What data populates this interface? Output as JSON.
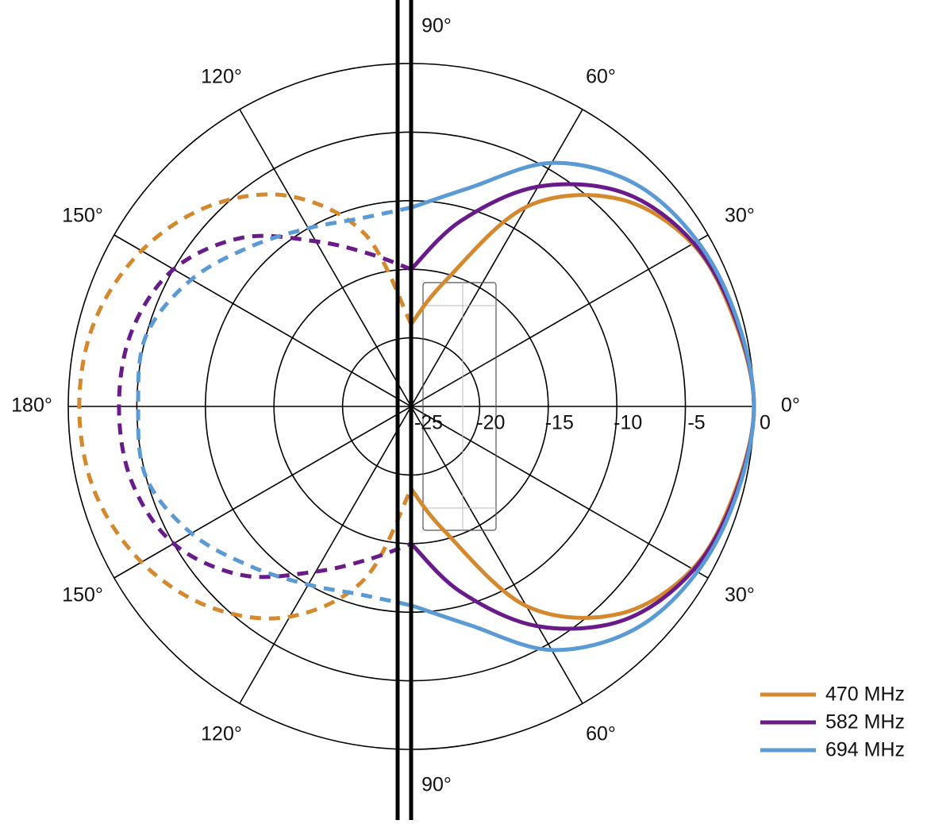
{
  "chart_data": {
    "type": "polar",
    "rlim": [
      -25,
      0
    ],
    "rticks": [
      -25,
      -20,
      -15,
      -10,
      -5,
      0
    ],
    "thetaticks": [
      {
        "value": 0,
        "label": "0°"
      },
      {
        "value": 30,
        "label": "30°"
      },
      {
        "value": 60,
        "label": "60°"
      },
      {
        "value": 90,
        "label": "90°"
      },
      {
        "value": 120,
        "label": "120°"
      },
      {
        "value": 150,
        "label": "150°"
      },
      {
        "value": 180,
        "label": "180°"
      },
      {
        "value": 210,
        "label": "150°"
      },
      {
        "value": 240,
        "label": "120°"
      },
      {
        "value": 270,
        "label": "90°"
      },
      {
        "value": 300,
        "label": "60°"
      },
      {
        "value": 330,
        "label": "30°"
      }
    ],
    "theta": [
      0,
      15,
      30,
      45,
      60,
      75,
      90,
      105,
      120,
      135,
      150,
      165,
      180,
      195,
      210,
      225,
      240,
      255,
      270,
      285,
      300,
      315,
      330,
      345
    ],
    "series": [
      {
        "name": "470 MHz",
        "color": "#d4892e",
        "values": [
          0,
          -0.6,
          -1.3,
          -3.6,
          -8.2,
          -15.6,
          -19,
          -12,
          -7.3,
          -4.3,
          -2.3,
          -1.1,
          -0.8,
          -1.1,
          -2.3,
          -4.3,
          -7.3,
          -12,
          -19,
          -15.6,
          -8.2,
          -3.6,
          -1.3,
          -0.6
        ]
      },
      {
        "name": "582 MHz",
        "color": "#6a1b8a",
        "values": [
          0,
          -0.5,
          -1.2,
          -3.0,
          -6.5,
          -11,
          -15,
          -13.5,
          -11.1,
          -7.6,
          -5.0,
          -3.9,
          -3.7,
          -3.9,
          -5.0,
          -7.6,
          -11.1,
          -13.5,
          -15,
          -11,
          -6.5,
          -3.0,
          -1.2,
          -0.5
        ]
      },
      {
        "name": "694 MHz",
        "color": "#5b9bd5",
        "values": [
          0,
          -0.4,
          -0.9,
          -2.0,
          -4.5,
          -8.5,
          -10.5,
          -10.8,
          -10.0,
          -8.5,
          -6.5,
          -5.0,
          -5.1,
          -5.0,
          -6.5,
          -8.5,
          -10.0,
          -10.8,
          -10.5,
          -8.5,
          -4.5,
          -2.0,
          -0.9,
          -0.4
        ]
      }
    ]
  }
}
